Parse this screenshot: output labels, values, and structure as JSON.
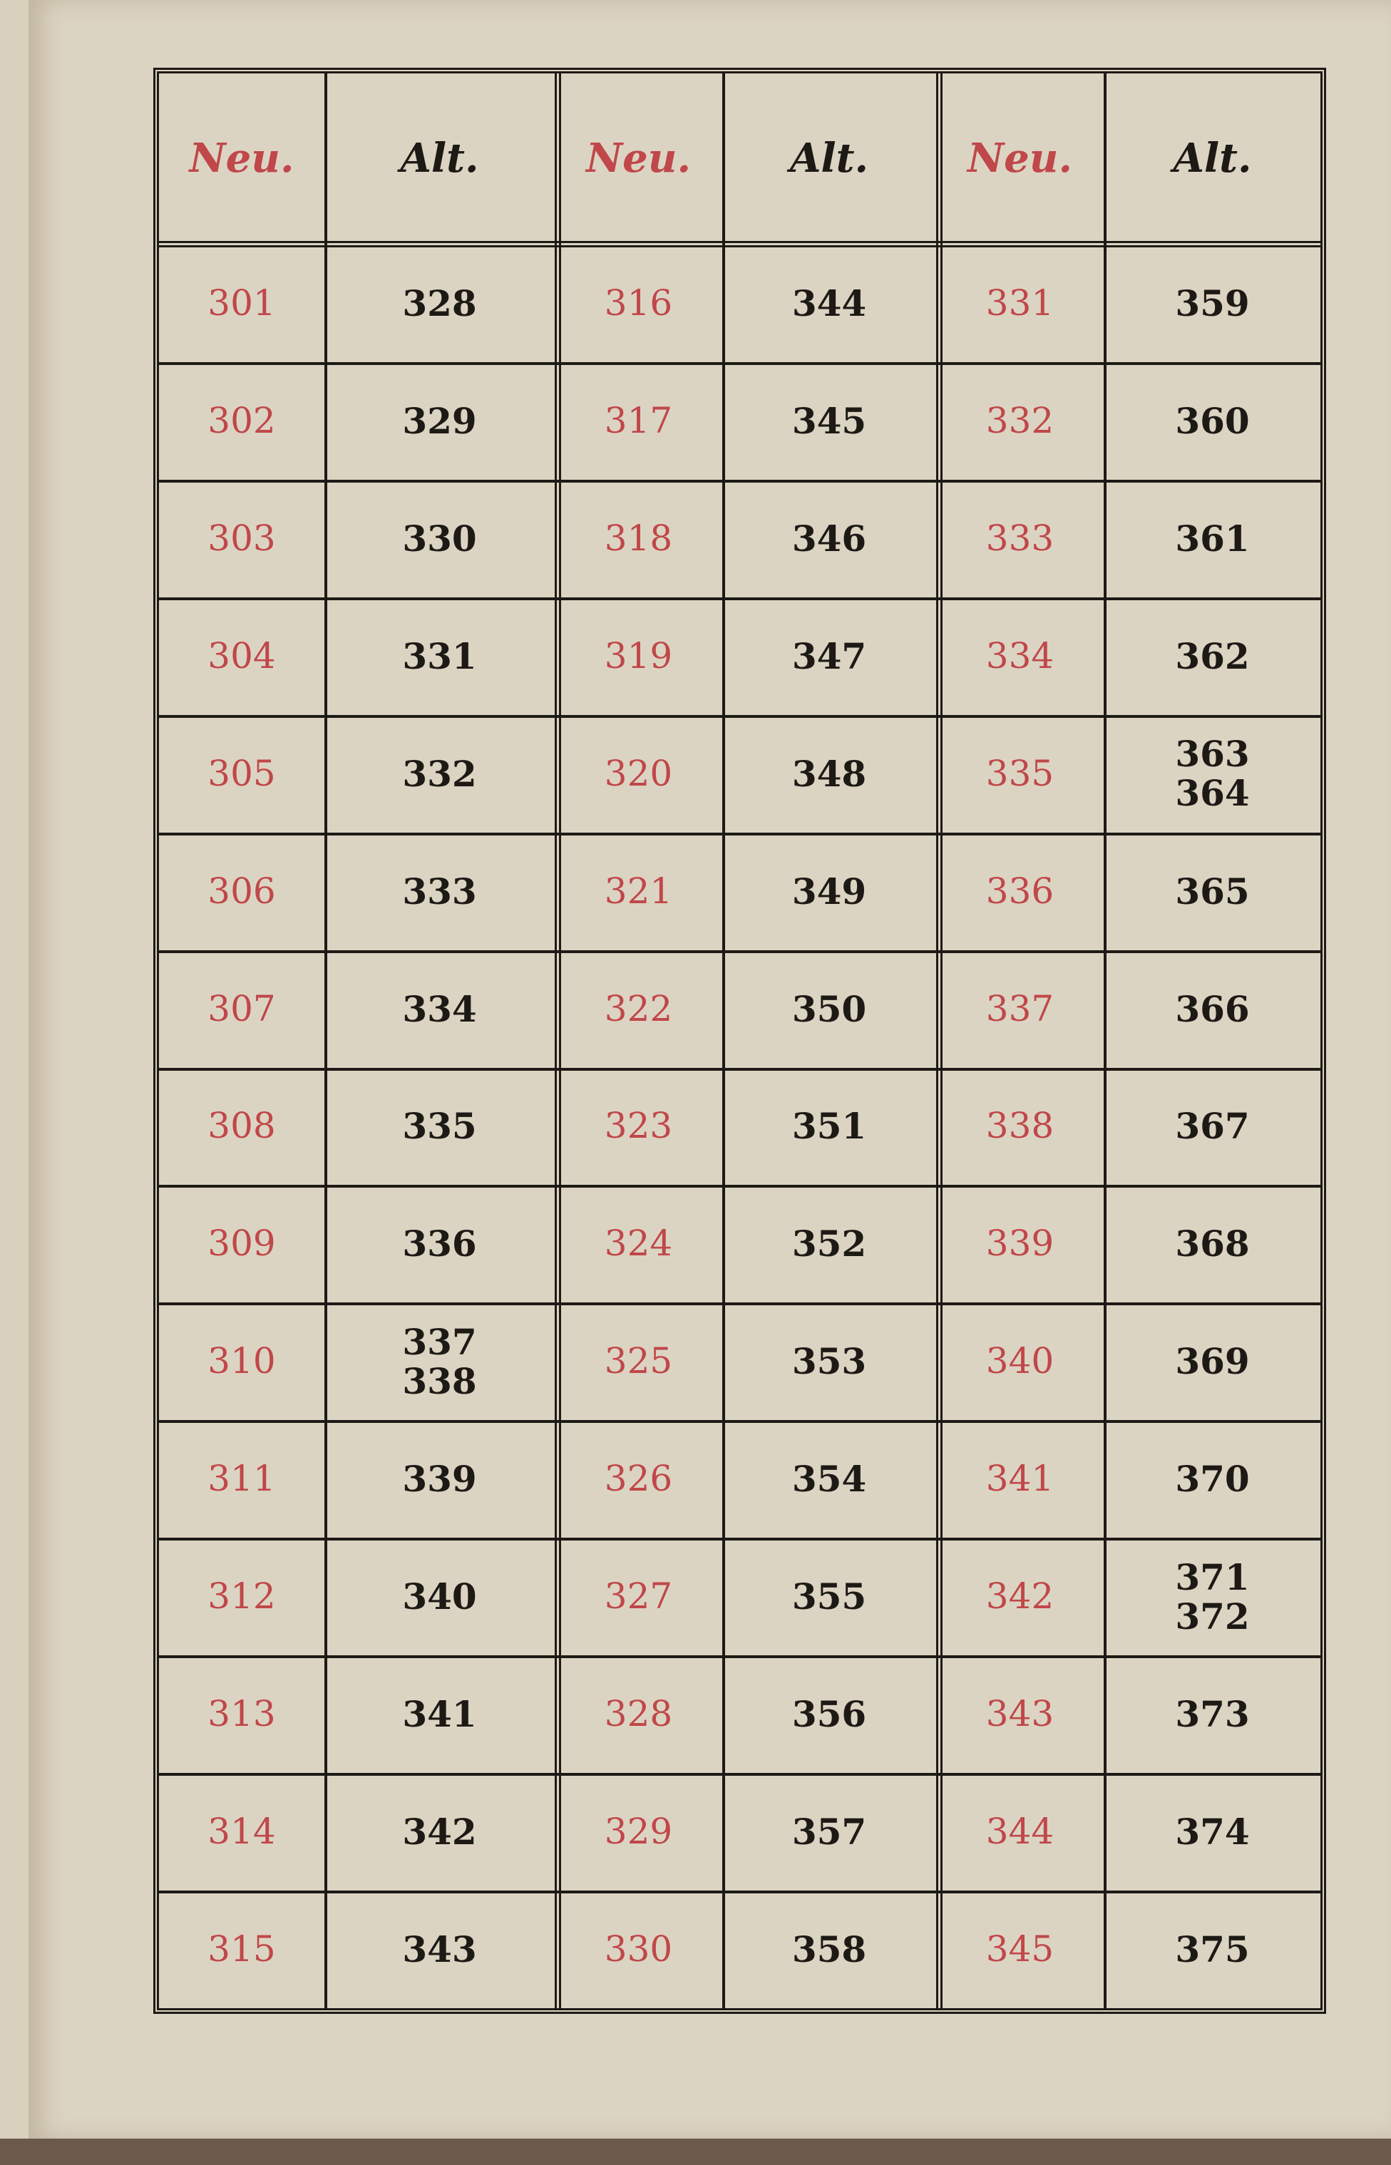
{
  "header": {
    "neu_label": "Neu.",
    "alt_label": "Alt."
  },
  "colors": {
    "neu": "#c0474a",
    "alt": "#1d1a16",
    "paper": "#dcd4c2"
  },
  "groups": [
    {
      "neu": [
        "301",
        "302",
        "303",
        "304",
        "305",
        "306",
        "307",
        "308",
        "309",
        "310",
        "311",
        "312",
        "313",
        "314",
        "315"
      ],
      "alt": [
        "328",
        "329",
        "330",
        "331",
        "332",
        "333",
        "334",
        "335",
        "336",
        "337\n338",
        "339",
        "340",
        "341",
        "342",
        "343"
      ]
    },
    {
      "neu": [
        "316",
        "317",
        "318",
        "319",
        "320",
        "321",
        "322",
        "323",
        "324",
        "325",
        "326",
        "327",
        "328",
        "329",
        "330"
      ],
      "alt": [
        "344",
        "345",
        "346",
        "347",
        "348",
        "349",
        "350",
        "351",
        "352",
        "353",
        "354",
        "355",
        "356",
        "357",
        "358"
      ]
    },
    {
      "neu": [
        "331",
        "332",
        "333",
        "334",
        "335",
        "336",
        "337",
        "338",
        "339",
        "340",
        "341",
        "342",
        "343",
        "344",
        "345"
      ],
      "alt": [
        "359",
        "360",
        "361",
        "362",
        "363\n364",
        "365",
        "366",
        "367",
        "368",
        "369",
        "370",
        "371\n372",
        "373",
        "374",
        "375"
      ]
    }
  ]
}
